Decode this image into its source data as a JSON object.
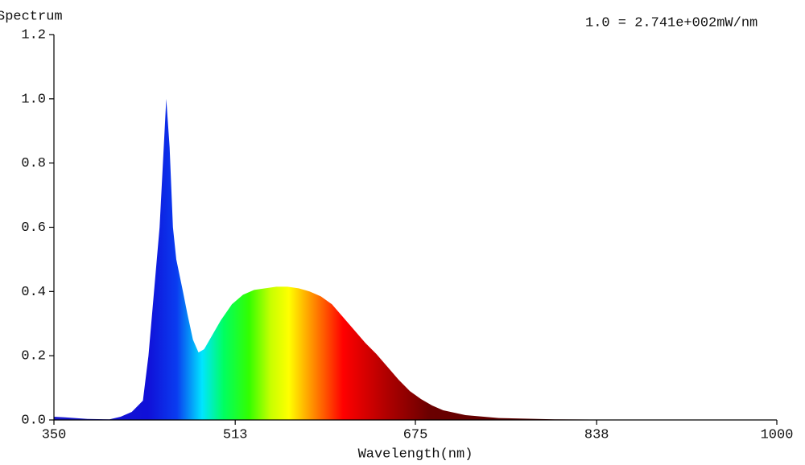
{
  "chart_data": {
    "type": "area",
    "title": "Spectrum",
    "annotation": "1.0 = 2.741e+002mW/nm",
    "x_label": "Wavelength(nm)",
    "x": [
      350,
      360,
      380,
      400,
      410,
      420,
      430,
      435,
      440,
      445,
      448,
      451,
      454,
      457,
      460,
      466,
      470,
      475,
      480,
      485,
      490,
      500,
      510,
      520,
      530,
      540,
      550,
      560,
      570,
      580,
      590,
      600,
      610,
      620,
      630,
      640,
      650,
      660,
      670,
      680,
      690,
      700,
      720,
      750,
      800,
      850,
      900,
      1000
    ],
    "values": [
      0.01,
      0.008,
      0.003,
      0.002,
      0.01,
      0.025,
      0.06,
      0.2,
      0.4,
      0.6,
      0.8,
      1.0,
      0.85,
      0.6,
      0.5,
      0.4,
      0.33,
      0.25,
      0.21,
      0.22,
      0.25,
      0.31,
      0.36,
      0.39,
      0.405,
      0.41,
      0.415,
      0.415,
      0.41,
      0.4,
      0.385,
      0.36,
      0.32,
      0.28,
      0.24,
      0.205,
      0.165,
      0.125,
      0.09,
      0.065,
      0.045,
      0.03,
      0.015,
      0.006,
      0.002,
      0.001,
      0.001,
      0
    ],
    "xlim": [
      350,
      1000
    ],
    "ylim": [
      0,
      1.2
    ],
    "xticks": [
      350,
      513,
      675,
      838,
      1000
    ],
    "yticks": [
      {
        "value": 0,
        "label": "0.0"
      },
      0.2,
      0.4,
      0.6,
      0.8,
      {
        "value": 1,
        "label": "1.0"
      },
      1.2
    ]
  }
}
